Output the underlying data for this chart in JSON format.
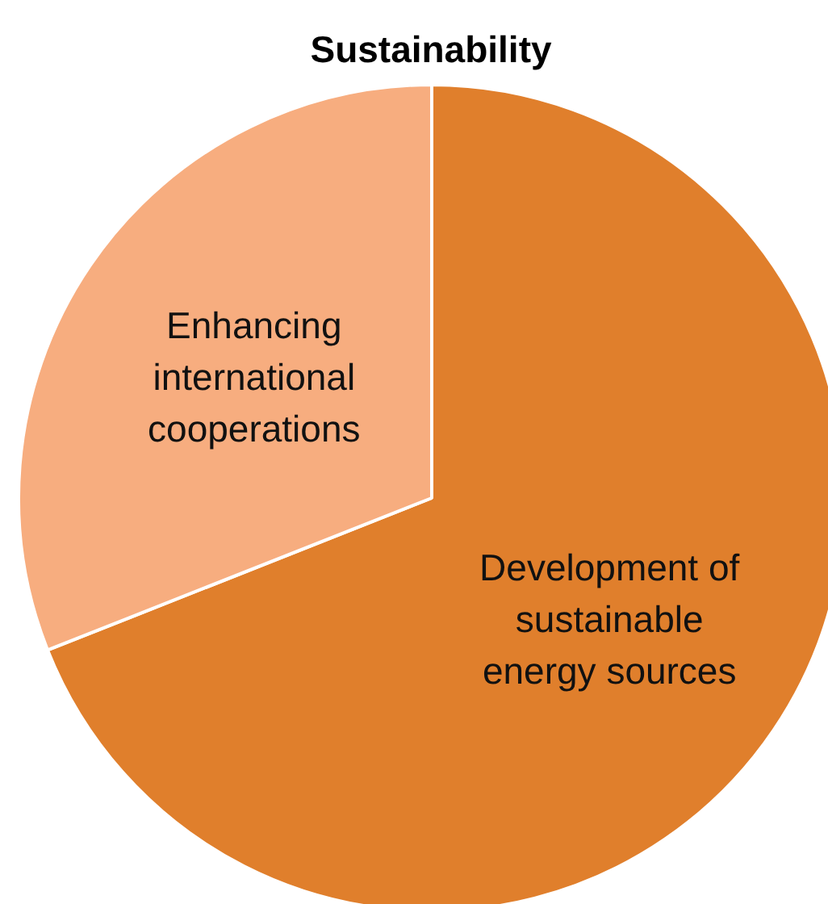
{
  "chart_data": {
    "type": "pie",
    "title": "Sustainability",
    "categories": [
      "Development of sustainable energy sources",
      "Enhancing international cooperations"
    ],
    "values": [
      69,
      31
    ],
    "colors": [
      "#e07f2c",
      "#f7ad7f"
    ]
  }
}
